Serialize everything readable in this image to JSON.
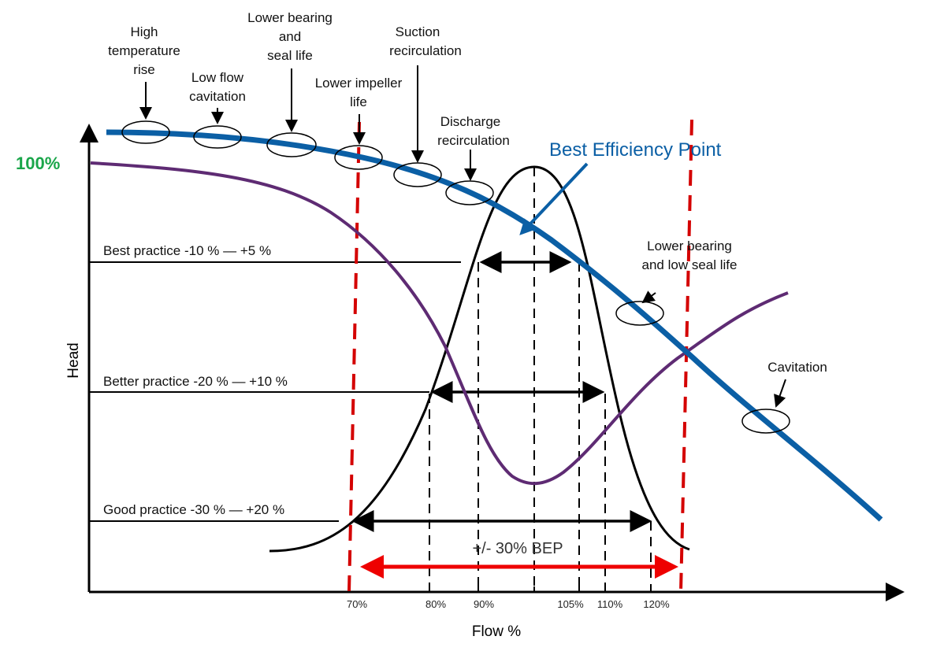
{
  "chart_data": {
    "type": "line",
    "title": "",
    "xlabel": "Flow %",
    "ylabel": "Head",
    "y_reference_label": "100%",
    "x_ticks": [
      "70%",
      "80%",
      "90%",
      "105%",
      "110%",
      "120%"
    ],
    "series": [
      {
        "name": "head-curve",
        "color": "#0b5fa5"
      },
      {
        "name": "reliability-curve",
        "color": "#5e2b73"
      },
      {
        "name": "efficiency-bell-curve",
        "color": "#000000"
      }
    ],
    "practice_bands": [
      {
        "label": "Best practice -10 % — +5 %",
        "from": "90%",
        "to": "105%"
      },
      {
        "label": "Better practice -20 % — +10 %",
        "from": "80%",
        "to": "110%"
      },
      {
        "label": "Good practice -30 % — +20 %",
        "from": "70%",
        "to": "120%"
      }
    ],
    "bep_range_label": "+/- 30% BEP",
    "bep_label": "Best Efficiency Point",
    "annotations": [
      {
        "lines": [
          "High",
          "temperature",
          "rise"
        ]
      },
      {
        "lines": [
          "Low flow",
          "cavitation"
        ]
      },
      {
        "lines": [
          "Lower bearing",
          "and",
          "seal life"
        ]
      },
      {
        "lines": [
          "Lower impeller",
          "life"
        ]
      },
      {
        "lines": [
          "Suction",
          "recirculation"
        ]
      },
      {
        "lines": [
          "Discharge",
          "recirculation"
        ]
      },
      {
        "lines": [
          "Lower bearing",
          "and low seal life"
        ]
      },
      {
        "lines": [
          "Cavitation"
        ]
      }
    ],
    "colors": {
      "limit_lines": "#d40000",
      "reference": "#1aa64a",
      "bep": "#0b5fa5"
    }
  }
}
